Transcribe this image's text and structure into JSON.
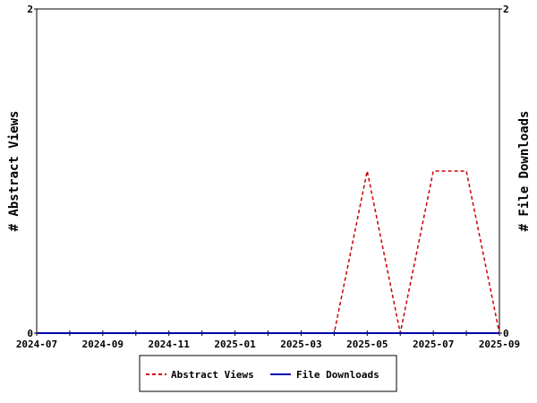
{
  "chart_data": {
    "type": "line",
    "x": [
      "2024-07",
      "2024-08",
      "2024-09",
      "2024-10",
      "2024-11",
      "2024-12",
      "2025-01",
      "2025-02",
      "2025-03",
      "2025-04",
      "2025-05",
      "2025-06",
      "2025-07",
      "2025-08",
      "2025-09"
    ],
    "x_tick_labels": [
      "2024-07",
      "2024-09",
      "2024-11",
      "2025-01",
      "2025-03",
      "2025-05",
      "2025-07",
      "2025-09"
    ],
    "series": [
      {
        "name": "Abstract Views",
        "axis": "left",
        "color": "#cc0000",
        "style": "dashed",
        "values": [
          0,
          0,
          0,
          0,
          0,
          0,
          0,
          0,
          0,
          0,
          1,
          0,
          1,
          1,
          0
        ]
      },
      {
        "name": "File Downloads",
        "axis": "right",
        "color": "#0000aa",
        "style": "solid",
        "values": [
          0,
          0,
          0,
          0,
          0,
          0,
          0,
          0,
          0,
          0,
          0,
          0,
          0,
          0,
          0
        ]
      }
    ],
    "ylabel_left": "# Abstract Views",
    "ylabel_right": "# File Downloads",
    "ylim_left": [
      0,
      2
    ],
    "ylim_right": [
      0,
      2
    ],
    "y_tick_labels_left": [
      "0",
      "2"
    ],
    "y_tick_labels_right": [
      "0",
      "2"
    ],
    "legend_position": "bottom-center",
    "grid": false
  }
}
